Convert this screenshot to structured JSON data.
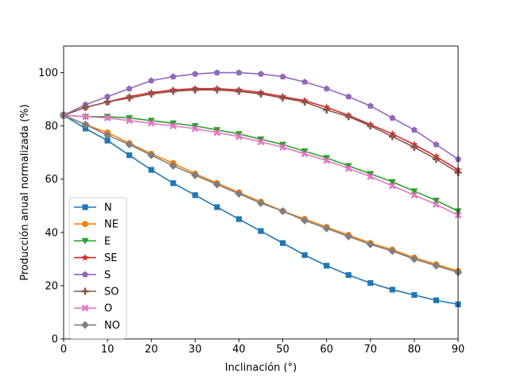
{
  "chart_data": {
    "type": "line",
    "title": "",
    "xlabel": "Inclinación (°)",
    "ylabel": "Producción anual normalizada (%)",
    "xlim": [
      0,
      90
    ],
    "ylim": [
      0,
      110
    ],
    "xticks": [
      0,
      10,
      20,
      30,
      40,
      50,
      60,
      70,
      80,
      90
    ],
    "yticks": [
      0,
      20,
      40,
      60,
      80,
      100
    ],
    "grid": false,
    "legend_position": "lower-left",
    "x": [
      0,
      5,
      10,
      15,
      20,
      25,
      30,
      35,
      40,
      45,
      50,
      55,
      60,
      65,
      70,
      75,
      80,
      85,
      90
    ],
    "series": [
      {
        "name": "N",
        "color": "#1f77b4",
        "marker": "square",
        "values": [
          84,
          79,
          74.5,
          69,
          63.5,
          58.5,
          54,
          49.5,
          45,
          40.5,
          36,
          31.5,
          27.5,
          24,
          21,
          18.5,
          16.5,
          14.5,
          13
        ]
      },
      {
        "name": "NE",
        "color": "#ff7f0e",
        "marker": "circle",
        "values": [
          84,
          80.5,
          77.5,
          73.5,
          69.5,
          66,
          62,
          58.5,
          55,
          51.5,
          48,
          45,
          42,
          39,
          36,
          33.5,
          30.5,
          28,
          25.5
        ]
      },
      {
        "name": "E",
        "color": "#2ca02c",
        "marker": "triangle-down",
        "values": [
          84,
          83.5,
          83.5,
          83,
          82,
          81,
          80,
          78.5,
          77,
          75,
          73,
          70.5,
          68,
          65,
          62,
          59,
          55.5,
          52,
          48
        ]
      },
      {
        "name": "SE",
        "color": "#d62728",
        "marker": "star",
        "values": [
          84,
          87,
          89,
          91,
          92.5,
          93.5,
          94,
          94,
          93.5,
          92.5,
          91,
          89.5,
          87,
          84,
          80.5,
          77,
          73,
          68.5,
          63.5
        ]
      },
      {
        "name": "S",
        "color": "#9467bd",
        "marker": "pentagon",
        "values": [
          84,
          88,
          91,
          94,
          97,
          98.5,
          99.5,
          100,
          100,
          99.5,
          98.5,
          96.5,
          94,
          91,
          87.5,
          83,
          78.5,
          73,
          67.5
        ]
      },
      {
        "name": "SO",
        "color": "#8c564b",
        "marker": "plus",
        "values": [
          84,
          87,
          89,
          90.5,
          92,
          93,
          93.5,
          93.5,
          93,
          92,
          90.5,
          89,
          86,
          83.5,
          80,
          76,
          72,
          67.5,
          62.5
        ]
      },
      {
        "name": "O",
        "color": "#e377c2",
        "marker": "x",
        "values": [
          84,
          83.5,
          83,
          82,
          81,
          80,
          79,
          77.5,
          76,
          74,
          72,
          69.5,
          67,
          64,
          61,
          57.5,
          54,
          50.5,
          46.5
        ]
      },
      {
        "name": "NO",
        "color": "#7f7f7f",
        "marker": "diamond",
        "values": [
          84,
          80.5,
          76.5,
          73,
          69,
          65,
          61.5,
          58,
          54.5,
          51,
          48,
          44.5,
          41.5,
          38.5,
          35.5,
          33,
          30,
          27.5,
          25
        ]
      }
    ]
  }
}
